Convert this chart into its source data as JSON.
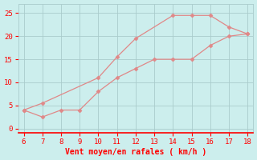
{
  "xlabel": "Vent moyen/en rafales ( km/h )",
  "bg_color": "#cceeed",
  "grid_color": "#aacccc",
  "line_color": "#e08888",
  "marker_color": "#e08888",
  "x_avg": [
    6,
    7,
    8,
    9,
    10,
    11,
    12,
    13,
    14,
    15,
    16,
    17,
    18
  ],
  "y_avg": [
    4,
    2.5,
    4,
    4,
    8,
    11,
    13,
    15,
    15,
    15,
    18,
    20,
    20.5
  ],
  "x_gust": [
    6,
    7,
    10,
    11,
    12,
    14,
    15,
    16,
    17,
    18
  ],
  "y_gust": [
    4,
    5.5,
    11,
    15.5,
    19.5,
    24.5,
    24.5,
    24.5,
    22,
    20.5
  ],
  "xlim": [
    5.7,
    18.3
  ],
  "ylim": [
    -1,
    27
  ],
  "xticks": [
    6,
    7,
    8,
    9,
    10,
    11,
    12,
    13,
    14,
    15,
    16,
    17,
    18
  ],
  "yticks": [
    0,
    5,
    10,
    15,
    20,
    25
  ],
  "tick_fontsize": 6.5,
  "xlabel_fontsize": 7
}
